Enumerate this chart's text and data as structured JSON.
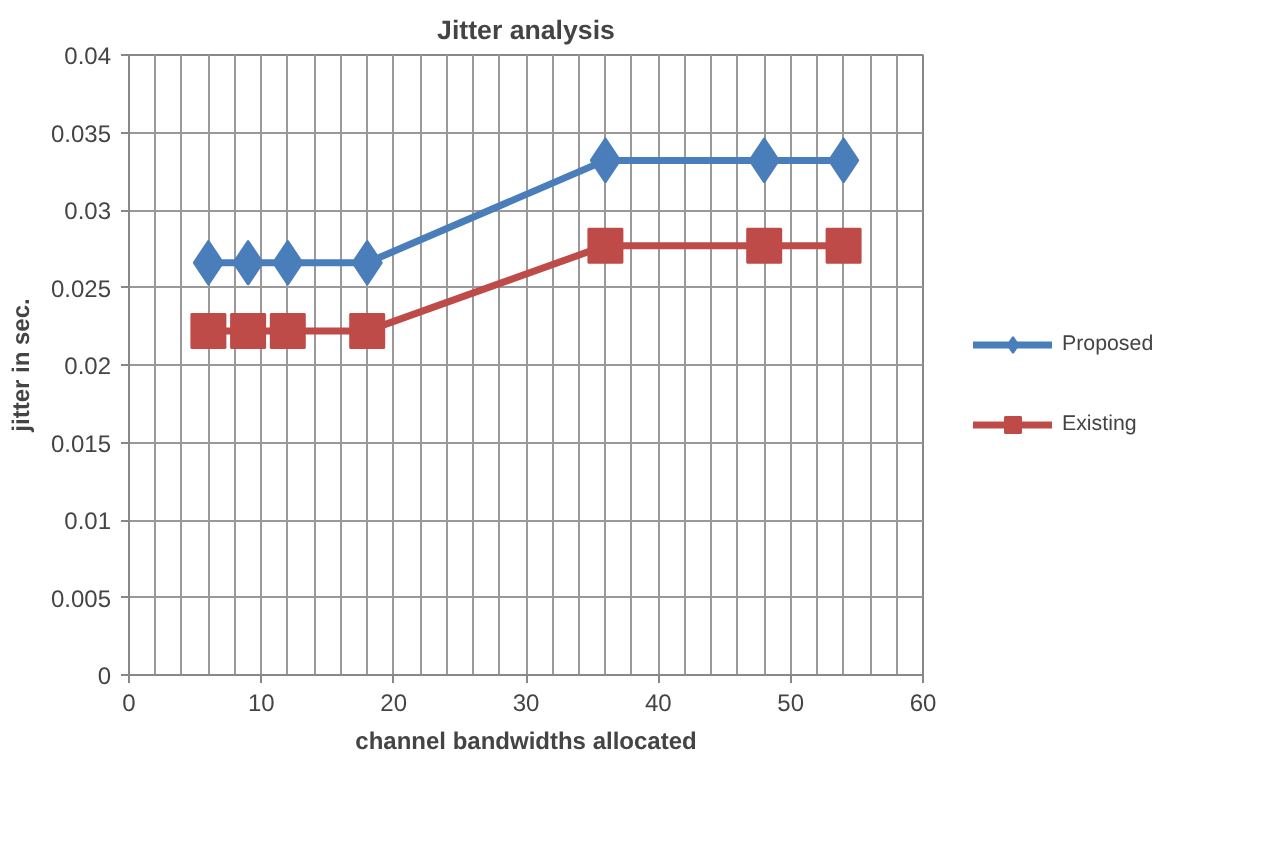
{
  "chart_data": {
    "type": "line",
    "title": "Jitter analysis",
    "xlabel": "channel bandwidths allocated",
    "ylabel": "jitter in sec.",
    "x": [
      6,
      9,
      12,
      18,
      36,
      48,
      54
    ],
    "series": [
      {
        "name": "Proposed",
        "color": "#4a7ebb",
        "values": [
          0.0266,
          0.0266,
          0.0266,
          0.0266,
          0.0332,
          0.0332,
          0.0332
        ],
        "marker": "diamond"
      },
      {
        "name": "Existing",
        "color": "#be4b48",
        "values": [
          0.0222,
          0.0222,
          0.0222,
          0.0222,
          0.0277,
          0.0277,
          0.0277
        ],
        "marker": "square"
      }
    ],
    "xlim": [
      0,
      60
    ],
    "xticks": [
      0,
      10,
      20,
      30,
      40,
      50,
      60
    ],
    "ylim": [
      0,
      0.04
    ],
    "yticks": [
      {
        "value": 0,
        "label": "0"
      },
      {
        "value": 0.005,
        "label": "0.005"
      },
      {
        "value": 0.01,
        "label": "0.01"
      },
      {
        "value": 0.015,
        "label": "0.015"
      },
      {
        "value": 0.02,
        "label": "0.02"
      },
      {
        "value": 0.025,
        "label": "0.025"
      },
      {
        "value": 0.03,
        "label": "0.03"
      },
      {
        "value": 0.035,
        "label": "0.035"
      },
      {
        "value": 0.04,
        "label": "0.04"
      }
    ],
    "grid": true,
    "legend": "right",
    "line_style": "solid"
  }
}
